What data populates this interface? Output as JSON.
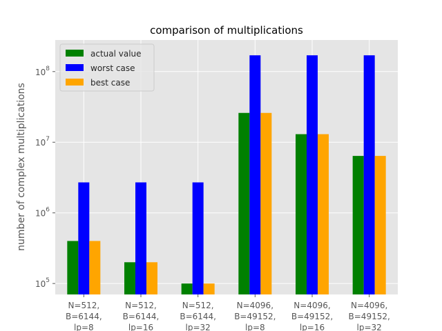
{
  "chart_data": {
    "type": "bar",
    "title": "comparison of multiplications",
    "xlabel": "",
    "ylabel": "number of complex multiplications",
    "yscale": "log",
    "ylim": [
      70000,
      280000000
    ],
    "grid": true,
    "legend_position": "top-left",
    "categories": [
      [
        "N=512,",
        "B=6144,",
        "lp=8"
      ],
      [
        "N=512,",
        "B=6144,",
        "lp=16"
      ],
      [
        "N=512,",
        "B=6144,",
        "lp=32"
      ],
      [
        "N=4096,",
        "B=49152,",
        "lp=8"
      ],
      [
        "N=4096,",
        "B=49152,",
        "lp=16"
      ],
      [
        "N=4096,",
        "B=49152,",
        "lp=32"
      ]
    ],
    "series": [
      {
        "name": "actual value",
        "color": "#008000",
        "values": [
          400000,
          200000,
          100000,
          26000000,
          13000000,
          6400000
        ]
      },
      {
        "name": "worst case",
        "color": "#0000ff",
        "values": [
          2700000,
          2700000,
          2700000,
          170000000,
          170000000,
          170000000
        ]
      },
      {
        "name": "best case",
        "color": "#ffa500",
        "values": [
          400000,
          200000,
          100000,
          26000000,
          13000000,
          6400000
        ]
      }
    ],
    "yticks": [
      {
        "value": 100000,
        "base": "10",
        "exp": "5"
      },
      {
        "value": 1000000,
        "base": "10",
        "exp": "6"
      },
      {
        "value": 10000000,
        "base": "10",
        "exp": "7"
      },
      {
        "value": 100000000,
        "base": "10",
        "exp": "8"
      }
    ],
    "colors": {
      "plot_background": "#e5e5e5",
      "grid": "#ffffff"
    }
  }
}
